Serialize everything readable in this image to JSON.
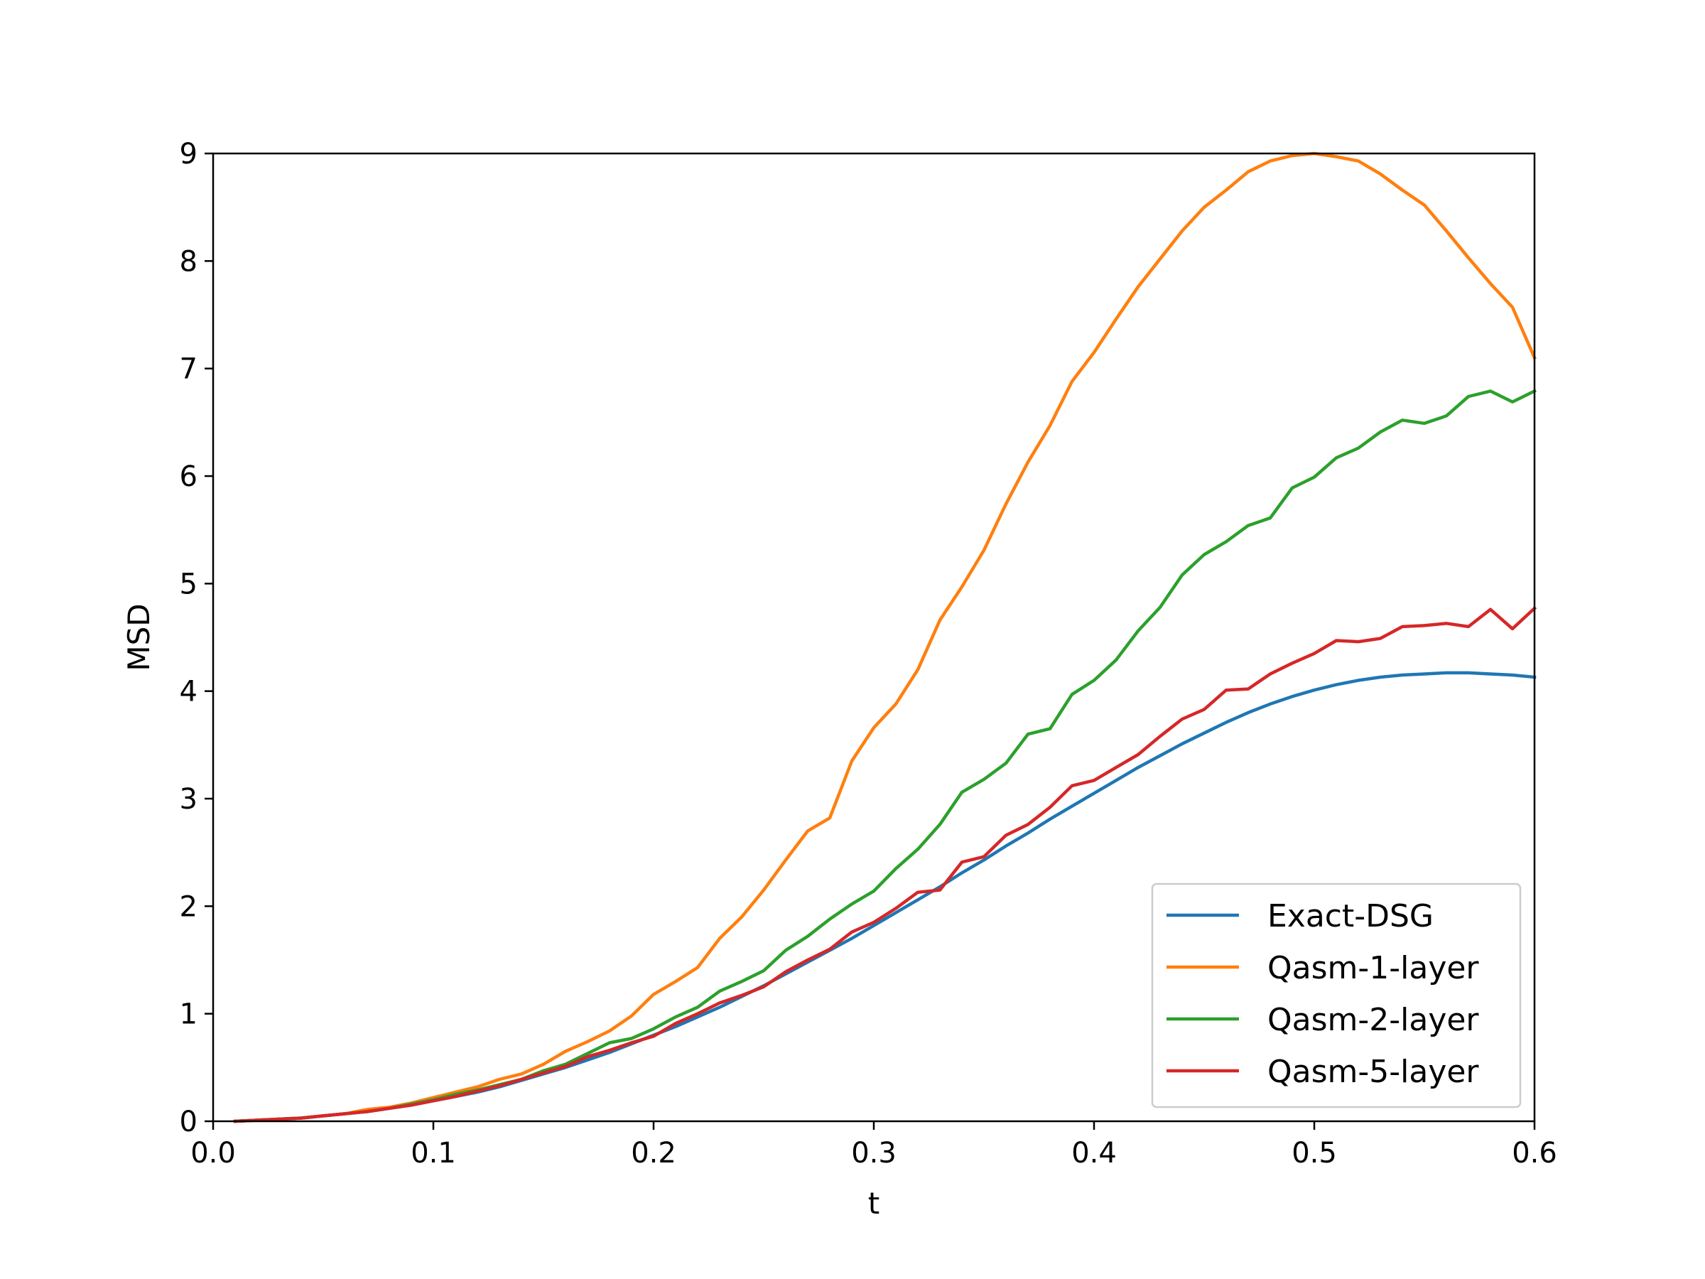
{
  "chart_data": {
    "type": "line",
    "title": "",
    "xlabel": "t",
    "ylabel": "MSD",
    "xlim": [
      0.0,
      0.6
    ],
    "ylim": [
      0,
      9
    ],
    "xticks": [
      "0.0",
      "0.1",
      "0.2",
      "0.3",
      "0.4",
      "0.5",
      "0.6"
    ],
    "yticks": [
      "0",
      "1",
      "2",
      "3",
      "4",
      "5",
      "6",
      "7",
      "8",
      "9"
    ],
    "grid": false,
    "legend_position": "lower-right",
    "x": [
      0.01,
      0.02,
      0.03,
      0.04,
      0.05,
      0.06,
      0.07,
      0.08,
      0.09,
      0.1,
      0.11,
      0.12,
      0.13,
      0.14,
      0.15,
      0.16,
      0.17,
      0.18,
      0.19,
      0.2,
      0.21,
      0.22,
      0.23,
      0.24,
      0.25,
      0.26,
      0.27,
      0.28,
      0.29,
      0.3,
      0.31,
      0.32,
      0.33,
      0.34,
      0.35,
      0.36,
      0.37,
      0.38,
      0.39,
      0.4,
      0.41,
      0.42,
      0.43,
      0.44,
      0.45,
      0.46,
      0.47,
      0.48,
      0.49,
      0.5,
      0.51,
      0.52,
      0.53,
      0.54,
      0.55,
      0.56,
      0.57,
      0.58,
      0.59,
      0.6
    ],
    "series": [
      {
        "name": "Exact-DSG",
        "color": "#1f77b4",
        "values": [
          0.0,
          0.01,
          0.02,
          0.03,
          0.05,
          0.07,
          0.09,
          0.12,
          0.15,
          0.19,
          0.23,
          0.27,
          0.32,
          0.38,
          0.44,
          0.5,
          0.57,
          0.64,
          0.72,
          0.8,
          0.88,
          0.97,
          1.06,
          1.16,
          1.26,
          1.37,
          1.48,
          1.59,
          1.7,
          1.82,
          1.94,
          2.06,
          2.18,
          2.31,
          2.43,
          2.56,
          2.68,
          2.81,
          2.93,
          3.05,
          3.17,
          3.29,
          3.4,
          3.51,
          3.61,
          3.71,
          3.8,
          3.88,
          3.95,
          4.01,
          4.06,
          4.1,
          4.13,
          4.15,
          4.16,
          4.17,
          4.17,
          4.16,
          4.15,
          4.13
        ]
      },
      {
        "name": "Qasm-1-layer",
        "color": "#ff7f0e",
        "values": [
          0.0,
          0.01,
          0.02,
          0.03,
          0.05,
          0.07,
          0.11,
          0.13,
          0.17,
          0.22,
          0.27,
          0.32,
          0.39,
          0.44,
          0.53,
          0.65,
          0.74,
          0.84,
          0.98,
          1.18,
          1.3,
          1.43,
          1.7,
          1.9,
          2.15,
          2.43,
          2.7,
          2.82,
          3.35,
          3.66,
          3.88,
          4.2,
          4.66,
          4.97,
          5.31,
          5.74,
          6.13,
          6.47,
          6.88,
          7.15,
          7.46,
          7.76,
          8.02,
          8.28,
          8.5,
          8.66,
          8.83,
          8.93,
          8.98,
          9.0,
          8.97,
          8.93,
          8.81,
          8.66,
          8.52,
          8.28,
          8.03,
          7.79,
          7.57,
          7.1
        ]
      },
      {
        "name": "Qasm-2-layer",
        "color": "#2ca02c",
        "values": [
          0.0,
          0.01,
          0.02,
          0.03,
          0.05,
          0.07,
          0.09,
          0.12,
          0.16,
          0.2,
          0.25,
          0.29,
          0.34,
          0.39,
          0.47,
          0.53,
          0.63,
          0.73,
          0.77,
          0.86,
          0.97,
          1.06,
          1.21,
          1.3,
          1.4,
          1.59,
          1.72,
          1.88,
          2.02,
          2.14,
          2.35,
          2.53,
          2.76,
          3.06,
          3.18,
          3.33,
          3.6,
          3.65,
          3.97,
          4.1,
          4.29,
          4.56,
          4.78,
          5.08,
          5.27,
          5.39,
          5.54,
          5.61,
          5.89,
          5.99,
          6.17,
          6.26,
          6.41,
          6.52,
          6.49,
          6.56,
          6.74,
          6.79,
          6.69,
          6.79
        ]
      },
      {
        "name": "Qasm-5-layer",
        "color": "#d62728",
        "values": [
          0.0,
          0.01,
          0.02,
          0.03,
          0.05,
          0.07,
          0.09,
          0.12,
          0.15,
          0.19,
          0.23,
          0.28,
          0.33,
          0.39,
          0.45,
          0.51,
          0.6,
          0.66,
          0.73,
          0.79,
          0.91,
          1.0,
          1.1,
          1.17,
          1.25,
          1.39,
          1.5,
          1.6,
          1.76,
          1.85,
          1.98,
          2.13,
          2.15,
          2.41,
          2.46,
          2.66,
          2.76,
          2.92,
          3.12,
          3.17,
          3.29,
          3.41,
          3.58,
          3.74,
          3.83,
          4.01,
          4.02,
          4.16,
          4.26,
          4.35,
          4.47,
          4.46,
          4.49,
          4.6,
          4.61,
          4.63,
          4.6,
          4.76,
          4.58,
          4.77
        ]
      }
    ]
  }
}
